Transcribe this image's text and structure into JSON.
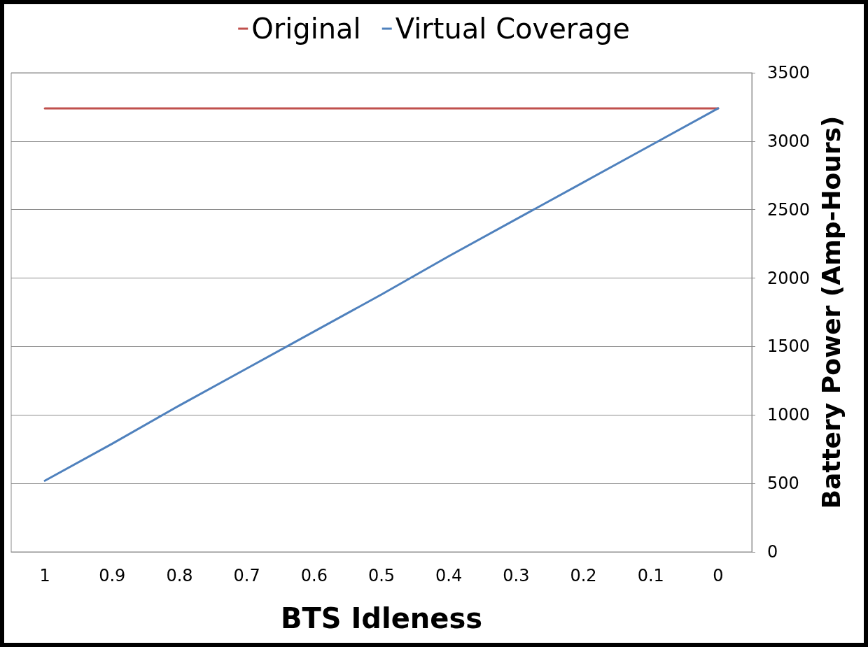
{
  "chart_data": {
    "type": "line",
    "xlabel": "BTS Idleness",
    "ylabel": "Battery Power (Amp-Hours)",
    "categories": [
      "1",
      "0.9",
      "0.8",
      "0.7",
      "0.6",
      "0.5",
      "0.4",
      "0.3",
      "0.2",
      "0.1",
      "0"
    ],
    "series": [
      {
        "name": "Original",
        "color": "#c0504d",
        "values": [
          3240,
          3240,
          3240,
          3240,
          3240,
          3240,
          3240,
          3240,
          3240,
          3240,
          3240
        ]
      },
      {
        "name": "Virtual Coverage",
        "color": "#4f81bd",
        "values": [
          520,
          790,
          1070,
          1340,
          1610,
          1880,
          2160,
          2430,
          2700,
          2970,
          3240
        ]
      }
    ],
    "ylim": [
      0,
      3500
    ],
    "yticks": [
      0,
      500,
      1000,
      1500,
      2000,
      2500,
      3000,
      3500
    ],
    "grid": "y",
    "legend": "top",
    "marker": "none",
    "line_style": "solid"
  }
}
